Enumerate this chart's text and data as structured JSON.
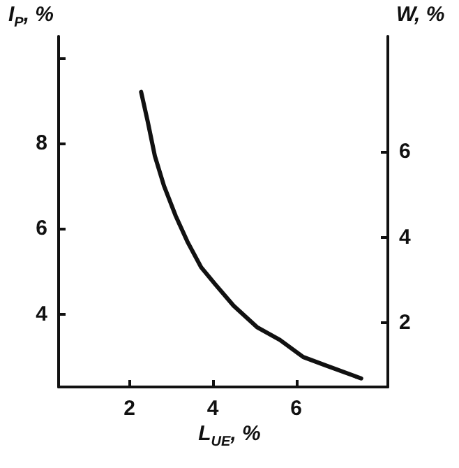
{
  "chart_data": {
    "type": "line",
    "xlabel": "L$_{UE}$, %",
    "ylabel": "I$_{P}$, %",
    "y2label": "W, %",
    "x": [
      2.28,
      2.44,
      2.61,
      2.83,
      3.11,
      3.39,
      3.72,
      4.06,
      4.5,
      5.06,
      5.61,
      6.17,
      6.72,
      7.56
    ],
    "series": [
      {
        "color": "#111111",
        "values": [
          9.2,
          8.5,
          7.7,
          7.0,
          6.3,
          5.7,
          5.1,
          4.7,
          4.2,
          3.7,
          3.4,
          3.0,
          2.8,
          2.5
        ]
      }
    ],
    "xlim": [
      0.3,
      8.2
    ],
    "xticks": [
      2,
      4,
      6
    ],
    "ylim": [
      2.3,
      10.5
    ],
    "yticks": [
      4,
      6,
      8,
      {
        "value": 10,
        "label": null
      }
    ],
    "y2lim": [
      0.5,
      8.7
    ],
    "y2ticks": [
      2,
      4,
      6
    ]
  }
}
